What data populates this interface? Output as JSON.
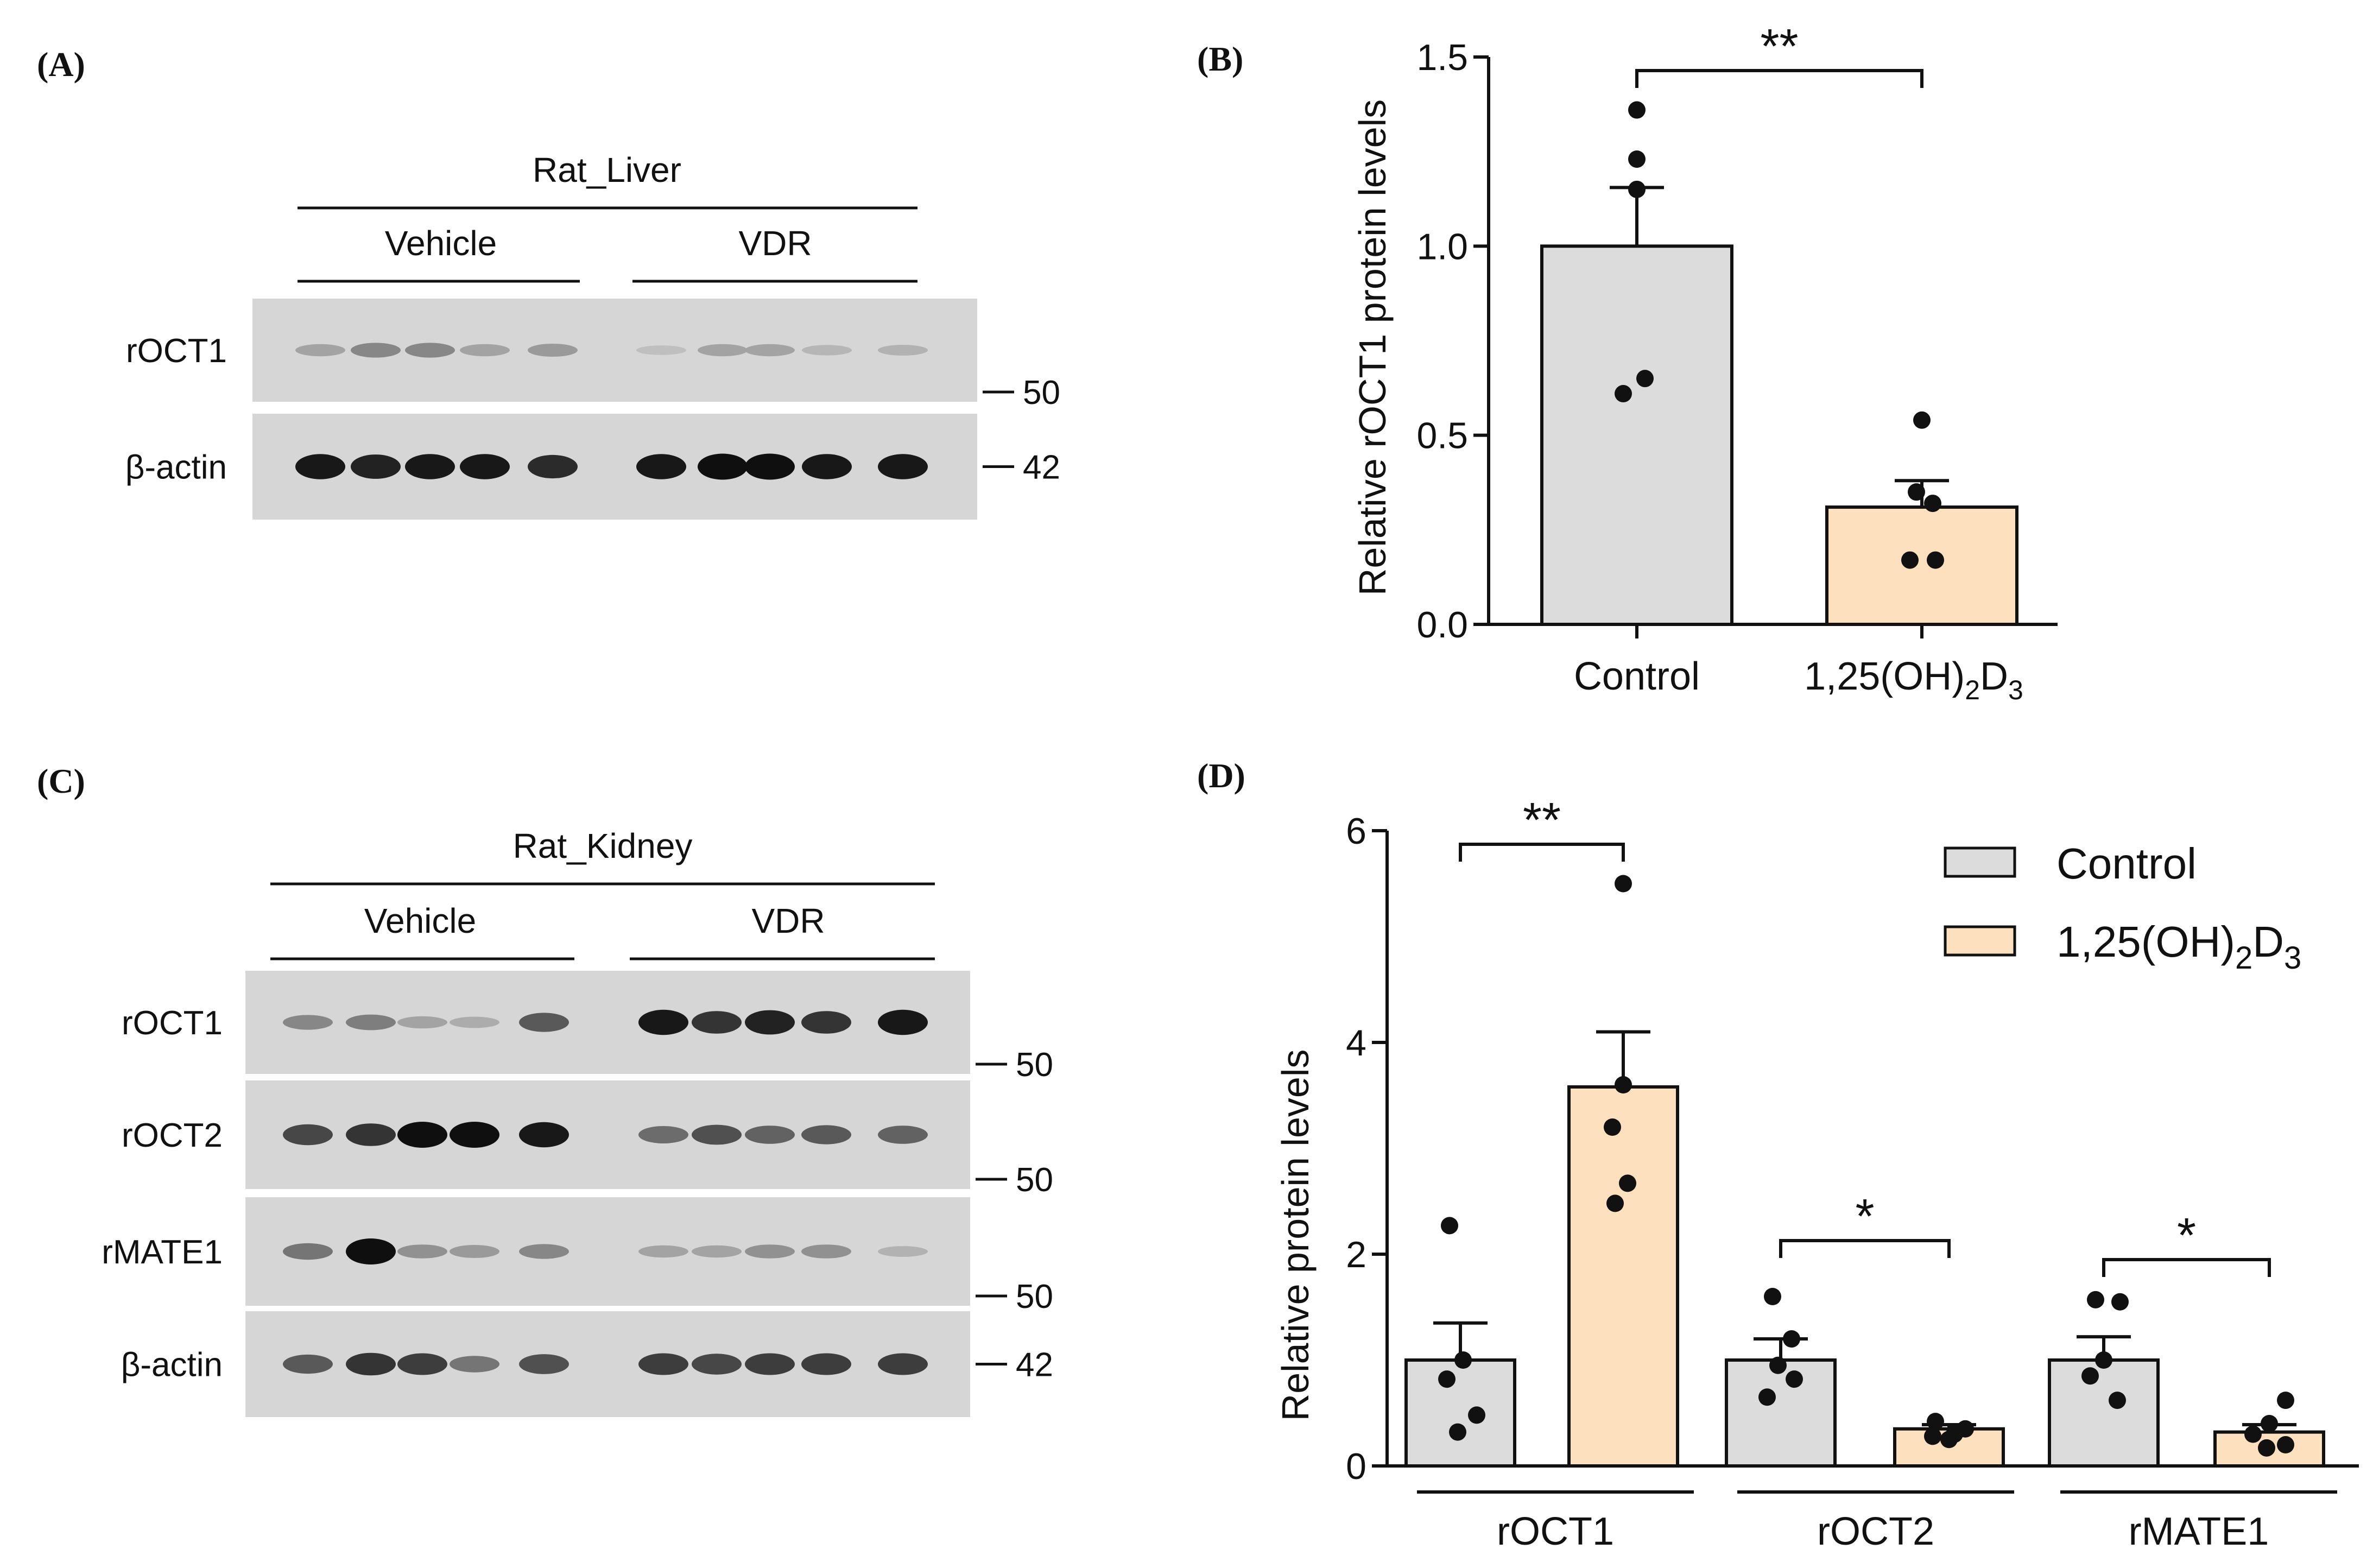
{
  "colors": {
    "control": "#dcdcdc",
    "treated": "#fde0bd",
    "ink": "#111111",
    "blot_bg": "#d6d6d6"
  },
  "panel_a": {
    "label": "(A)",
    "tissue": "Rat_Liver",
    "groups": [
      "Vehicle",
      "VDR"
    ],
    "blots": [
      {
        "protein": "rOCT1",
        "marker": "50",
        "intensities": [
          0.2,
          0.35,
          0.35,
          0.2,
          0.25,
          0.05,
          0.2,
          0.2,
          0.1,
          0.12
        ]
      },
      {
        "protein": "β-actin",
        "marker": "42",
        "intensities": [
          0.95,
          0.9,
          0.95,
          0.95,
          0.85,
          0.95,
          1.0,
          1.0,
          0.95,
          0.95
        ]
      }
    ]
  },
  "panel_c": {
    "label": "(C)",
    "tissue": "Rat_Kidney",
    "groups": [
      "Vehicle",
      "VDR"
    ],
    "blots": [
      {
        "protein": "rOCT1",
        "marker": "50",
        "intensities": [
          0.35,
          0.4,
          0.2,
          0.15,
          0.6,
          0.95,
          0.8,
          0.9,
          0.8,
          0.95
        ]
      },
      {
        "protein": "rOCT2",
        "marker": "50",
        "intensities": [
          0.7,
          0.8,
          1.0,
          1.0,
          0.95,
          0.5,
          0.65,
          0.55,
          0.6,
          0.55
        ]
      },
      {
        "protein": "rMATE1",
        "marker": "50",
        "intensities": [
          0.45,
          1.0,
          0.3,
          0.25,
          0.35,
          0.2,
          0.2,
          0.3,
          0.3,
          0.12
        ]
      },
      {
        "protein": "β-actin",
        "marker": "42",
        "intensities": [
          0.6,
          0.8,
          0.75,
          0.45,
          0.65,
          0.75,
          0.7,
          0.75,
          0.75,
          0.75
        ]
      }
    ]
  },
  "chart_data": [
    {
      "panel": "(B)",
      "type": "bar",
      "ylabel": "Relative rOCT1 protein levels",
      "ylim": [
        0,
        1.5
      ],
      "yticks": [
        "0.0",
        "0.5",
        "1.0",
        "1.5"
      ],
      "categories": [
        "Control",
        "1,25(OH)",
        "2",
        "D",
        "3"
      ],
      "series": [
        {
          "name": "Control",
          "mean": 1.0,
          "sem": 0.155,
          "points": [
            1.36,
            1.23,
            1.15,
            0.65,
            0.61
          ]
        },
        {
          "name": "1,25(OH)2D3",
          "mean": 0.31,
          "sem": 0.07,
          "points": [
            0.54,
            0.35,
            0.32,
            0.17,
            0.17
          ]
        }
      ],
      "significance": [
        "**"
      ]
    },
    {
      "panel": "(D)",
      "type": "bar",
      "ylabel": "Relative protein levels",
      "ylim": [
        0,
        6
      ],
      "yticks": [
        "0",
        "2",
        "4",
        "6"
      ],
      "categories": [
        "rOCT1",
        "rOCT2",
        "rMATE1"
      ],
      "legend": {
        "position": "top-right",
        "entries": [
          "Control",
          "1,25(OH)",
          "2",
          "D",
          "3"
        ]
      },
      "series": [
        {
          "name": "Control",
          "means": [
            1.0,
            1.0,
            1.0
          ],
          "sems": [
            0.35,
            0.2,
            0.22
          ],
          "points": [
            [
              2.27,
              1.0,
              0.82,
              0.48,
              0.32
            ],
            [
              1.6,
              1.2,
              0.95,
              0.82,
              0.65
            ],
            [
              1.57,
              1.55,
              1.0,
              0.85,
              0.62
            ]
          ]
        },
        {
          "name": "1,25(OH)2D3",
          "means": [
            3.58,
            0.35,
            0.32
          ],
          "sems": [
            0.52,
            0.04,
            0.07
          ],
          "points": [
            [
              5.5,
              3.6,
              3.2,
              2.67,
              2.48
            ],
            [
              0.42,
              0.35,
              0.3,
              0.28,
              0.25
            ],
            [
              0.62,
              0.4,
              0.3,
              0.2,
              0.17
            ]
          ]
        }
      ],
      "significance": [
        "**",
        "*",
        "*"
      ]
    }
  ]
}
